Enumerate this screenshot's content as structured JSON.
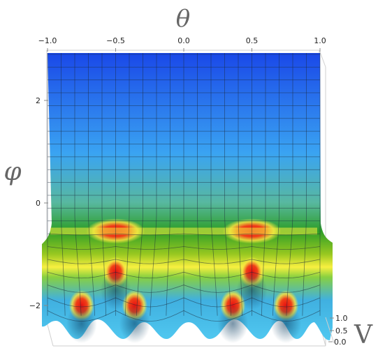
{
  "chart_data": {
    "type": "surface3d",
    "title": "",
    "axes": {
      "x": {
        "label": "θ",
        "range": [
          -1.0,
          1.0
        ],
        "ticks": [
          "-1.0",
          "-0.5",
          "0.0",
          "0.5",
          "1.0"
        ]
      },
      "y": {
        "label": "φ",
        "range": [
          -2,
          3
        ],
        "ticks": [
          "2",
          "0",
          "-2"
        ]
      },
      "z": {
        "label": "V",
        "range": [
          0.0,
          1.0
        ],
        "ticks": [
          "1.0",
          "0.5",
          "0.0"
        ]
      }
    },
    "colormap": [
      "#1a4fe8",
      "#3aa0f0",
      "#20a030",
      "#f8f040",
      "#e01818"
    ],
    "hotspots": [
      {
        "theta": -0.5,
        "phi": -0.55,
        "V": 1.0
      },
      {
        "theta": 0.5,
        "phi": -0.55,
        "V": 1.0
      },
      {
        "theta": -0.5,
        "phi": -1.35,
        "V": 1.0
      },
      {
        "theta": 0.5,
        "phi": -1.35,
        "V": 1.0
      },
      {
        "theta": -0.75,
        "phi": -2.0,
        "V": 1.0
      },
      {
        "theta": -0.36,
        "phi": -2.0,
        "V": 1.0
      },
      {
        "theta": 0.36,
        "phi": -2.0,
        "V": 1.0
      },
      {
        "theta": 0.75,
        "phi": -2.0,
        "V": 1.0
      }
    ],
    "grid": true,
    "box": true
  }
}
